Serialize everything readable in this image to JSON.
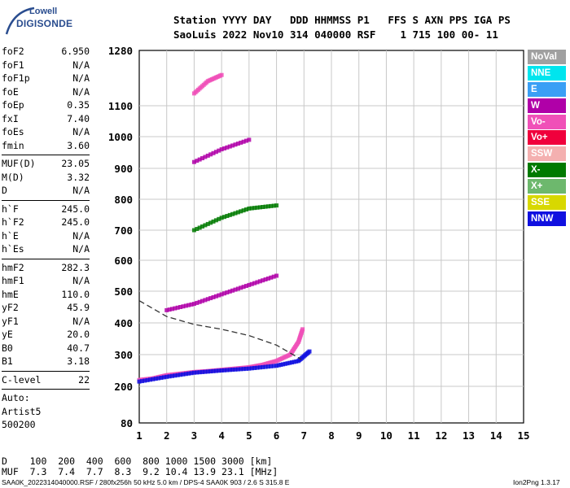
{
  "logo": {
    "top": "Lowell",
    "main": "DIGISONDE"
  },
  "header": {
    "line1": "Station YYYY DAY   DDD HHMMSS P1   FFS S AXN PPS IGA PS",
    "line2": "SaoLuis 2022 Nov10 314 040000 RSF    1 715 100 00- 11"
  },
  "params": [
    {
      "name": "foF2",
      "value": "6.950"
    },
    {
      "name": "foF1",
      "value": "N/A"
    },
    {
      "name": "foF1p",
      "value": "N/A"
    },
    {
      "name": "foE",
      "value": "N/A"
    },
    {
      "name": "foEp",
      "value": "0.35"
    },
    {
      "name": "fxI",
      "value": "7.40"
    },
    {
      "name": "foEs",
      "value": "N/A"
    },
    {
      "name": "fmin",
      "value": "3.60"
    },
    {
      "sep": true
    },
    {
      "name": "MUF(D)",
      "value": "23.05"
    },
    {
      "name": "M(D)",
      "value": "3.32"
    },
    {
      "name": "D",
      "value": "N/A"
    },
    {
      "sep": true
    },
    {
      "name": "h`F",
      "value": "245.0"
    },
    {
      "name": "h`F2",
      "value": "245.0"
    },
    {
      "name": "h`E",
      "value": "N/A"
    },
    {
      "name": "h`Es",
      "value": "N/A"
    },
    {
      "sep": true
    },
    {
      "name": "hmF2",
      "value": "282.3"
    },
    {
      "name": "hmF1",
      "value": "N/A"
    },
    {
      "name": "hmE",
      "value": "110.0"
    },
    {
      "name": "yF2",
      "value": "45.9"
    },
    {
      "name": "yF1",
      "value": "N/A"
    },
    {
      "name": "yE",
      "value": "20.0"
    },
    {
      "name": "B0",
      "value": "40.7"
    },
    {
      "name": "B1",
      "value": "3.18"
    },
    {
      "sep": true
    },
    {
      "name": "C-level",
      "value": "22"
    },
    {
      "sep": true
    },
    {
      "text": "Auto:"
    },
    {
      "text": "Artist5"
    },
    {
      "text": "500200"
    }
  ],
  "legend": [
    {
      "label": "NoVal",
      "color": "#a0a0a0"
    },
    {
      "label": "NNE",
      "color": "#00e5ee"
    },
    {
      "label": "E",
      "color": "#3a9ff5"
    },
    {
      "label": "W",
      "color": "#b000a8"
    },
    {
      "label": "Vo-",
      "color": "#f050b8"
    },
    {
      "label": "Vo+",
      "color": "#f0003c"
    },
    {
      "label": "SSW",
      "color": "#f4b0b0"
    },
    {
      "label": "X-",
      "color": "#007a00"
    },
    {
      "label": "X+",
      "color": "#6db86d"
    },
    {
      "label": "SSE",
      "color": "#d8d800"
    },
    {
      "label": "NNW",
      "color": "#1010e0"
    }
  ],
  "chart_data": {
    "type": "scatter",
    "title": "",
    "xlabel": "",
    "ylabel": "",
    "x_ticks": [
      "1",
      "2",
      "3",
      "4",
      "5",
      "6",
      "7",
      "8",
      "9",
      "10",
      "11",
      "12",
      "13",
      "14",
      "15"
    ],
    "y_ticks": [
      "80",
      "200",
      "300",
      "400",
      "500",
      "600",
      "700",
      "800",
      "900",
      "1000",
      "1100",
      "1280"
    ],
    "xlim": [
      1,
      15
    ],
    "grid": true,
    "traces": [
      {
        "name": "O-trace",
        "color": "#f050b8",
        "points": [
          [
            1.0,
            220
          ],
          [
            1.5,
            225
          ],
          [
            2.0,
            235
          ],
          [
            2.5,
            240
          ],
          [
            3.0,
            245
          ],
          [
            3.5,
            248
          ],
          [
            4.0,
            252
          ],
          [
            4.5,
            256
          ],
          [
            5.0,
            260
          ],
          [
            5.5,
            268
          ],
          [
            6.0,
            280
          ],
          [
            6.5,
            300
          ],
          [
            6.8,
            340
          ],
          [
            6.95,
            380
          ]
        ]
      },
      {
        "name": "X-trace",
        "color": "#1010e0",
        "points": [
          [
            1.0,
            215
          ],
          [
            2.0,
            230
          ],
          [
            3.0,
            243
          ],
          [
            4.0,
            250
          ],
          [
            5.0,
            256
          ],
          [
            6.0,
            265
          ],
          [
            6.8,
            280
          ],
          [
            7.2,
            310
          ]
        ]
      },
      {
        "name": "multi-hop-2",
        "color": "#b000a8",
        "points": [
          [
            2.0,
            440
          ],
          [
            3.0,
            460
          ],
          [
            4.0,
            490
          ],
          [
            5.0,
            520
          ],
          [
            6.0,
            550
          ]
        ]
      },
      {
        "name": "multi-hop-3",
        "color": "#007a00",
        "points": [
          [
            3.0,
            700
          ],
          [
            4.0,
            740
          ],
          [
            5.0,
            770
          ],
          [
            6.0,
            780
          ]
        ]
      },
      {
        "name": "multi-hop-4",
        "color": "#b000a8",
        "points": [
          [
            3.0,
            920
          ],
          [
            4.0,
            960
          ],
          [
            5.0,
            990
          ]
        ]
      },
      {
        "name": "multi-hop-5",
        "color": "#f050b8",
        "points": [
          [
            3.0,
            1140
          ],
          [
            3.5,
            1180
          ],
          [
            4.0,
            1200
          ]
        ]
      }
    ],
    "profile": [
      [
        1.0,
        470
      ],
      [
        2.0,
        420
      ],
      [
        3.0,
        395
      ],
      [
        4.0,
        380
      ],
      [
        5.0,
        360
      ],
      [
        6.0,
        330
      ],
      [
        6.9,
        285
      ]
    ]
  },
  "bottom": {
    "line1": "D    100  200  400  600  800 1000 1500 3000 [km]",
    "line2": "MUF  7.3  7.4  7.7  8.3  9.2 10.4 13.9 23.1 [MHz]"
  },
  "footer": {
    "left": "SAA0K_2022314040000.RSF / 280fx256h 50 kHz 5.0 km / DPS-4 SAA0K 903 / 2.6 S 315.8 E",
    "right": "Ion2Png 1.3.17"
  }
}
